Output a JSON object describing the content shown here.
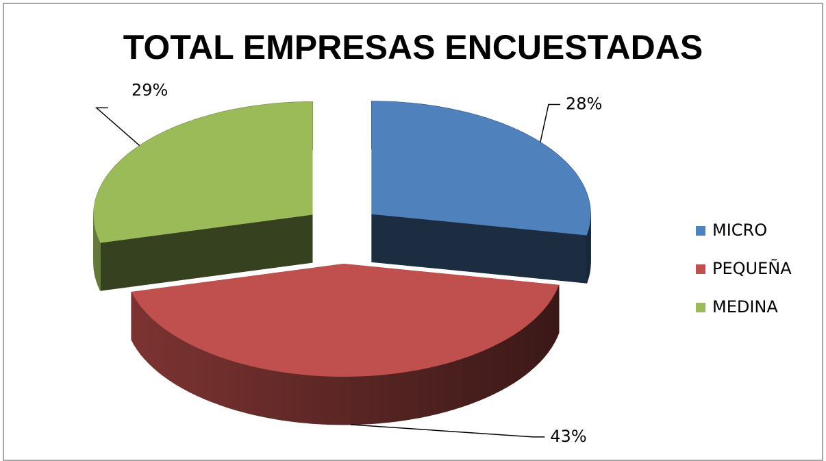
{
  "chart_data": {
    "type": "pie",
    "title": "TOTAL EMPRESAS ENCUESTADAS",
    "categories": [
      "MICRO",
      "PEQUEÑA",
      "MEDINA"
    ],
    "values": [
      28,
      43,
      29
    ],
    "value_labels": [
      "28%",
      "43%",
      "29%"
    ],
    "colors": [
      "#4f81bd",
      "#c0504d",
      "#9bbb59"
    ],
    "legend": "right"
  }
}
